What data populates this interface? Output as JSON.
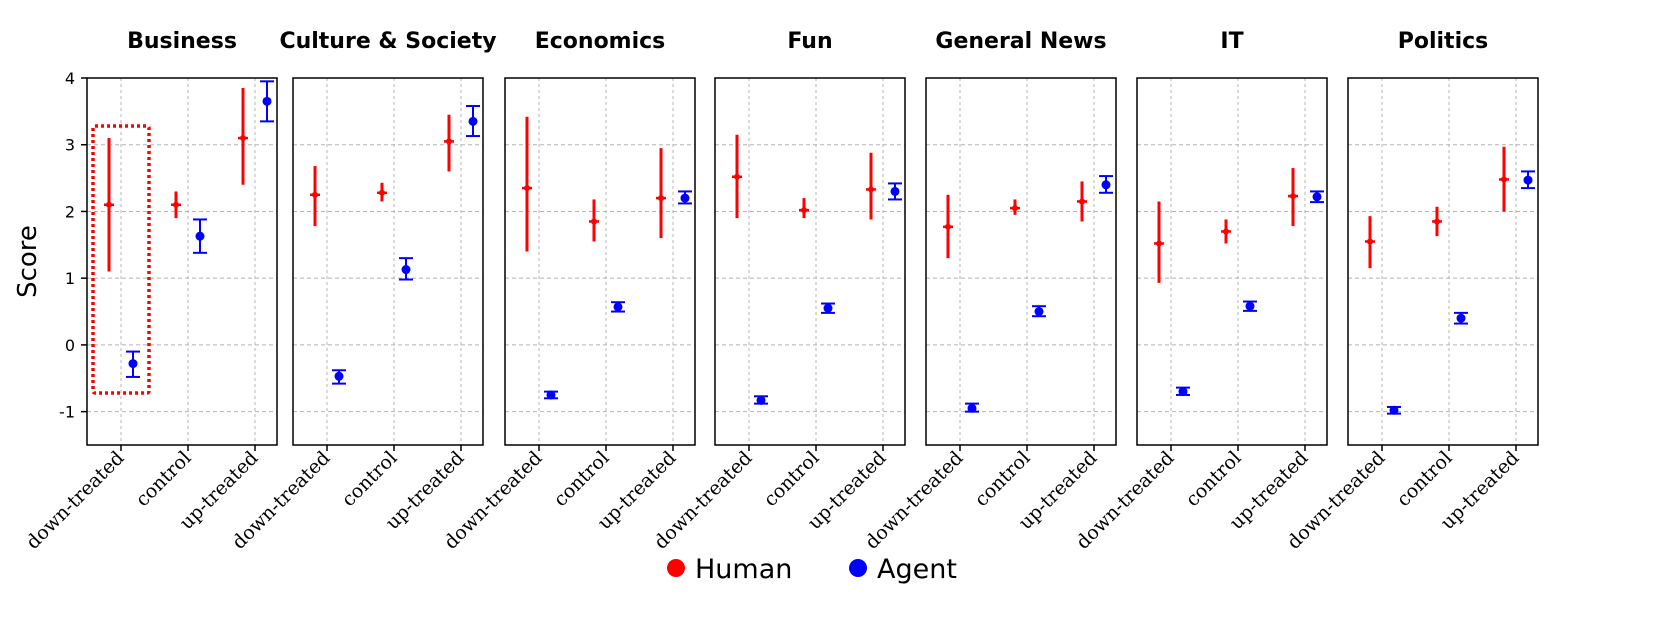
{
  "chart_data": {
    "type": "errorbar",
    "ylabel": "Score",
    "ylim": [
      -1.5,
      4
    ],
    "yticks": [
      4,
      3,
      2,
      1,
      0,
      -1
    ],
    "categories": [
      "down-treated",
      "control",
      "up-treated"
    ],
    "grid": true,
    "legend": {
      "placement": "bottom-center",
      "entries": [
        {
          "name": "Human",
          "color": "#ff0000"
        },
        {
          "name": "Agent",
          "color": "#0000ff"
        }
      ]
    },
    "colors": {
      "Human": "#ff0000",
      "Agent": "#0000ff",
      "highlight": "#ff0000"
    },
    "highlight": {
      "panel": "Business",
      "category": "down-treated",
      "style": "dotted-box"
    },
    "panels": [
      {
        "title": "Business",
        "human": [
          {
            "mean": 2.1,
            "low": 1.1,
            "high": 3.1
          },
          {
            "mean": 2.1,
            "low": 1.9,
            "high": 2.3
          },
          {
            "mean": 3.1,
            "low": 2.4,
            "high": 3.85
          }
        ],
        "agent": [
          {
            "mean": -0.28,
            "low": -0.48,
            "high": -0.1
          },
          {
            "mean": 1.63,
            "low": 1.38,
            "high": 1.88
          },
          {
            "mean": 3.65,
            "low": 3.35,
            "high": 3.95
          }
        ]
      },
      {
        "title": "Culture & Society",
        "human": [
          {
            "mean": 2.25,
            "low": 1.78,
            "high": 2.68
          },
          {
            "mean": 2.28,
            "low": 2.15,
            "high": 2.43
          },
          {
            "mean": 3.05,
            "low": 2.6,
            "high": 3.45
          }
        ],
        "agent": [
          {
            "mean": -0.47,
            "low": -0.58,
            "high": -0.38
          },
          {
            "mean": 1.13,
            "low": 0.98,
            "high": 1.3
          },
          {
            "mean": 3.35,
            "low": 3.13,
            "high": 3.58
          }
        ]
      },
      {
        "title": "Economics",
        "human": [
          {
            "mean": 2.35,
            "low": 1.4,
            "high": 3.42
          },
          {
            "mean": 1.85,
            "low": 1.55,
            "high": 2.18
          },
          {
            "mean": 2.2,
            "low": 1.6,
            "high": 2.95
          }
        ],
        "agent": [
          {
            "mean": -0.75,
            "low": -0.8,
            "high": -0.7
          },
          {
            "mean": 0.57,
            "low": 0.5,
            "high": 0.64
          },
          {
            "mean": 2.2,
            "low": 2.12,
            "high": 2.3
          }
        ]
      },
      {
        "title": "Fun",
        "human": [
          {
            "mean": 2.52,
            "low": 1.9,
            "high": 3.15
          },
          {
            "mean": 2.02,
            "low": 1.9,
            "high": 2.2
          },
          {
            "mean": 2.33,
            "low": 1.88,
            "high": 2.88
          }
        ],
        "agent": [
          {
            "mean": -0.83,
            "low": -0.88,
            "high": -0.77
          },
          {
            "mean": 0.55,
            "low": 0.48,
            "high": 0.62
          },
          {
            "mean": 2.3,
            "low": 2.18,
            "high": 2.42
          }
        ]
      },
      {
        "title": "General News",
        "human": [
          {
            "mean": 1.77,
            "low": 1.3,
            "high": 2.25
          },
          {
            "mean": 2.05,
            "low": 1.95,
            "high": 2.18
          },
          {
            "mean": 2.15,
            "low": 1.85,
            "high": 2.45
          }
        ],
        "agent": [
          {
            "mean": -0.95,
            "low": -1.0,
            "high": -0.88
          },
          {
            "mean": 0.5,
            "low": 0.43,
            "high": 0.58
          },
          {
            "mean": 2.4,
            "low": 2.28,
            "high": 2.53
          }
        ]
      },
      {
        "title": "IT",
        "human": [
          {
            "mean": 1.52,
            "low": 0.93,
            "high": 2.15
          },
          {
            "mean": 1.7,
            "low": 1.52,
            "high": 1.88
          },
          {
            "mean": 2.23,
            "low": 1.78,
            "high": 2.65
          }
        ],
        "agent": [
          {
            "mean": -0.7,
            "low": -0.75,
            "high": -0.64
          },
          {
            "mean": 0.58,
            "low": 0.51,
            "high": 0.65
          },
          {
            "mean": 2.22,
            "low": 2.14,
            "high": 2.3
          }
        ]
      },
      {
        "title": "Politics",
        "human": [
          {
            "mean": 1.55,
            "low": 1.15,
            "high": 1.93
          },
          {
            "mean": 1.85,
            "low": 1.63,
            "high": 2.07
          },
          {
            "mean": 2.48,
            "low": 2.0,
            "high": 2.97
          }
        ],
        "agent": [
          {
            "mean": -0.98,
            "low": -1.03,
            "high": -0.93
          },
          {
            "mean": 0.4,
            "low": 0.32,
            "high": 0.48
          },
          {
            "mean": 2.47,
            "low": 2.35,
            "high": 2.6
          }
        ]
      }
    ]
  }
}
